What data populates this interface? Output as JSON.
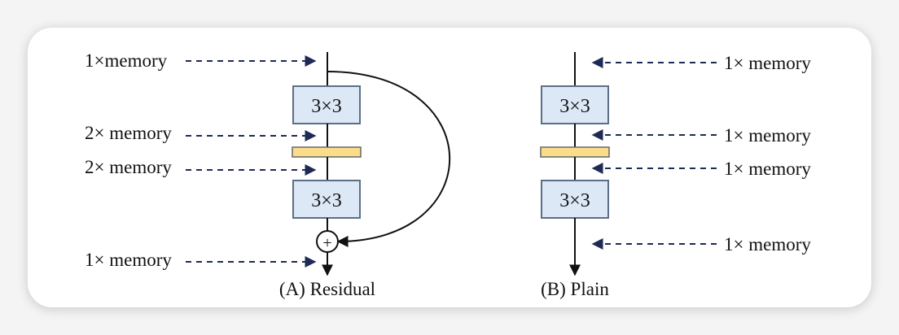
{
  "residual": {
    "caption": "(A) Residual",
    "conv1_label": "3×3",
    "conv2_label": "3×3",
    "add_symbol": "+",
    "memory_labels": [
      "1×memory",
      "2× memory",
      "2× memory",
      "1× memory"
    ]
  },
  "plain": {
    "caption": "(B) Plain",
    "conv1_label": "3×3",
    "conv2_label": "3×3",
    "memory_labels": [
      "1× memory",
      "1× memory",
      "1× memory",
      "1× memory"
    ]
  },
  "colors": {
    "conv_fill": "#dce8f6",
    "conv_stroke": "#5b6f86",
    "norm_fill": "#fbdc8a",
    "dashed_arrow": "#1e2a55",
    "flow_line": "#111111"
  }
}
